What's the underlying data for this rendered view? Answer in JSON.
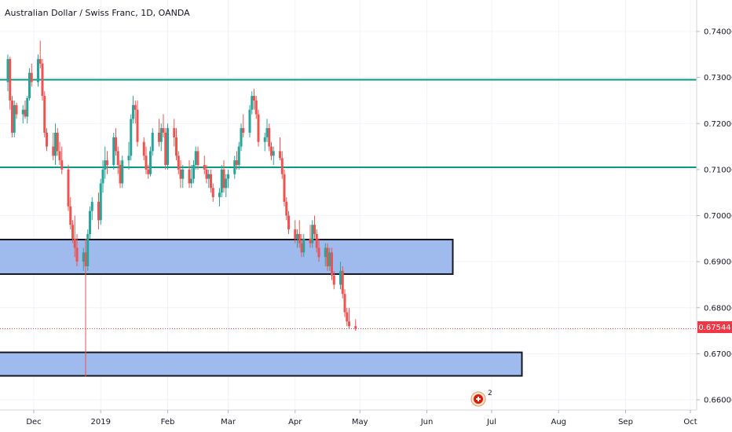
{
  "chart_data": {
    "type": "candlestick",
    "title": "Australian Dollar / Swiss Franc, 1D, OANDA",
    "xlabel": "",
    "ylabel": "",
    "x_ticks": [
      "Dec",
      "2019",
      "Feb",
      "Mar",
      "Apr",
      "May",
      "Jun",
      "Jul",
      "Aug",
      "Sep",
      "Oct"
    ],
    "y_ticks": [
      "0.74000",
      "0.73000",
      "0.72000",
      "0.71000",
      "0.70000",
      "0.69000",
      "0.68000",
      "0.67000",
      "0.66000"
    ],
    "ylim": [
      0.6575,
      0.7465
    ],
    "grid": true,
    "last_price": "0.67544",
    "last_price_value": 0.67544,
    "colors": {
      "up": "#26a69a",
      "down": "#ef5350",
      "line": "#089981",
      "zone_fill": "#9ab6ec",
      "zone_border": "#131722",
      "last": "#f23645"
    },
    "horizontal_lines": [
      0.7295,
      0.7105
    ],
    "zones": [
      {
        "start": "2018-11-15",
        "end": "2019-06-13",
        "top": 0.6948,
        "bottom": 0.6873
      },
      {
        "start": "2018-11-15",
        "end": "2019-07-15",
        "top": 0.6703,
        "bottom": 0.6652
      }
    ],
    "series": [
      {
        "start_date": "2018-11-19",
        "bars": [
          [
            0.729,
            0.735,
            0.727,
            0.734
          ],
          [
            0.734,
            0.7345,
            0.723,
            0.725
          ],
          [
            0.725,
            0.726,
            0.717,
            0.718
          ],
          [
            0.718,
            0.725,
            0.717,
            0.724
          ],
          [
            0.724,
            0.7245,
            0.721,
            0.722
          ],
          [
            0.722,
            0.724,
            0.72,
            0.723
          ],
          [
            0.723,
            0.725,
            0.721,
            0.7215
          ],
          [
            0.7215,
            0.726,
            0.72,
            0.7255
          ],
          [
            0.7255,
            0.732,
            0.725,
            0.731
          ],
          [
            0.731,
            0.733,
            0.728,
            0.729
          ],
          [
            0.729,
            0.735,
            0.728,
            0.734
          ],
          [
            0.734,
            0.738,
            0.732,
            0.733
          ],
          [
            0.733,
            0.734,
            0.725,
            0.726
          ],
          [
            0.726,
            0.727,
            0.717,
            0.718
          ],
          [
            0.718,
            0.719,
            0.714,
            0.715
          ],
          [
            0.715,
            0.718,
            0.712,
            0.713
          ],
          [
            0.713,
            0.72,
            0.711,
            0.718
          ],
          [
            0.718,
            0.719,
            0.713,
            0.714
          ],
          [
            0.714,
            0.716,
            0.711,
            0.712
          ],
          [
            0.712,
            0.715,
            0.709,
            0.71
          ],
          [
            0.71,
            0.711,
            0.701,
            0.702
          ],
          [
            0.702,
            0.704,
            0.697,
            0.698
          ],
          [
            0.698,
            0.699,
            0.694,
            0.695
          ],
          [
            0.695,
            0.7,
            0.691,
            0.693
          ],
          [
            0.693,
            0.696,
            0.689,
            0.69
          ],
          [
            0.69,
            0.693,
            0.688,
            0.692
          ],
          [
            0.692,
            0.695,
            0.665,
            0.689
          ],
          [
            0.689,
            0.697,
            0.688,
            0.696
          ],
          [
            0.696,
            0.702,
            0.695,
            0.701
          ],
          [
            0.701,
            0.704,
            0.699,
            0.703
          ],
          [
            0.703,
            0.705,
            0.697,
            0.699
          ],
          [
            0.699,
            0.708,
            0.698,
            0.707
          ],
          [
            0.707,
            0.712,
            0.705,
            0.71
          ],
          [
            0.71,
            0.715,
            0.708,
            0.712
          ],
          [
            0.712,
            0.714,
            0.709,
            0.711
          ],
          [
            0.711,
            0.718,
            0.71,
            0.717
          ],
          [
            0.717,
            0.719,
            0.713,
            0.714
          ],
          [
            0.714,
            0.715,
            0.709,
            0.711
          ],
          [
            0.711,
            0.712,
            0.706,
            0.707
          ],
          [
            0.707,
            0.713,
            0.706,
            0.712
          ],
          [
            0.712,
            0.716,
            0.71,
            0.713
          ],
          [
            0.713,
            0.722,
            0.712,
            0.721
          ],
          [
            0.721,
            0.726,
            0.72,
            0.724
          ],
          [
            0.724,
            0.725,
            0.72,
            0.723
          ],
          [
            0.723,
            0.725,
            0.715,
            0.716
          ],
          [
            0.716,
            0.717,
            0.712,
            0.713
          ],
          [
            0.713,
            0.715,
            0.709,
            0.71
          ],
          [
            0.71,
            0.711,
            0.708,
            0.709
          ],
          [
            0.709,
            0.715,
            0.7085,
            0.714
          ],
          [
            0.714,
            0.719,
            0.713,
            0.718
          ],
          [
            0.718,
            0.721,
            0.715,
            0.716
          ],
          [
            0.716,
            0.72,
            0.714,
            0.719
          ],
          [
            0.719,
            0.722,
            0.717,
            0.718
          ],
          [
            0.718,
            0.719,
            0.71,
            0.711
          ],
          [
            0.711,
            0.72,
            0.71,
            0.719
          ],
          [
            0.719,
            0.721,
            0.715,
            0.717
          ],
          [
            0.717,
            0.719,
            0.712,
            0.713
          ],
          [
            0.713,
            0.714,
            0.709,
            0.71
          ],
          [
            0.71,
            0.712,
            0.706,
            0.708
          ],
          [
            0.708,
            0.711,
            0.706,
            0.71
          ],
          [
            0.71,
            0.712,
            0.706,
            0.707
          ],
          [
            0.707,
            0.711,
            0.706,
            0.708
          ],
          [
            0.708,
            0.712,
            0.707,
            0.711
          ],
          [
            0.711,
            0.715,
            0.71,
            0.714
          ],
          [
            0.714,
            0.715,
            0.71,
            0.711
          ],
          [
            0.711,
            0.713,
            0.709,
            0.71
          ],
          [
            0.71,
            0.711,
            0.707,
            0.708
          ],
          [
            0.708,
            0.71,
            0.706,
            0.709
          ],
          [
            0.709,
            0.71,
            0.705,
            0.706
          ],
          [
            0.706,
            0.707,
            0.703,
            0.704
          ],
          [
            0.704,
            0.706,
            0.702,
            0.705
          ],
          [
            0.705,
            0.711,
            0.704,
            0.71
          ],
          [
            0.71,
            0.712,
            0.705,
            0.706
          ],
          [
            0.706,
            0.709,
            0.704,
            0.708
          ],
          [
            0.708,
            0.71,
            0.706,
            0.709
          ],
          [
            0.709,
            0.713,
            0.708,
            0.712
          ],
          [
            0.712,
            0.714,
            0.71,
            0.711
          ],
          [
            0.711,
            0.716,
            0.71,
            0.715
          ],
          [
            0.715,
            0.72,
            0.714,
            0.719
          ],
          [
            0.719,
            0.722,
            0.717,
            0.718
          ],
          [
            0.718,
            0.724,
            0.717,
            0.723
          ],
          [
            0.723,
            0.727,
            0.722,
            0.726
          ],
          [
            0.726,
            0.7275,
            0.723,
            0.725
          ],
          [
            0.725,
            0.726,
            0.721,
            0.722
          ],
          [
            0.722,
            0.723,
            0.715,
            0.716
          ],
          [
            0.716,
            0.718,
            0.714,
            0.717
          ],
          [
            0.717,
            0.721,
            0.716,
            0.719
          ],
          [
            0.719,
            0.72,
            0.714,
            0.715
          ],
          [
            0.715,
            0.716,
            0.712,
            0.713
          ],
          [
            0.713,
            0.715,
            0.711,
            0.714
          ],
          [
            0.714,
            0.717,
            0.712,
            0.7125
          ],
          [
            0.7125,
            0.714,
            0.708,
            0.709
          ],
          [
            0.709,
            0.71,
            0.702,
            0.703
          ],
          [
            0.703,
            0.704,
            0.699,
            0.7
          ],
          [
            0.7,
            0.701,
            0.696,
            0.697
          ],
          [
            0.697,
            0.699,
            0.694,
            0.695
          ],
          [
            0.695,
            0.697,
            0.693,
            0.696
          ],
          [
            0.696,
            0.699,
            0.693,
            0.694
          ],
          [
            0.694,
            0.696,
            0.691,
            0.692
          ],
          [
            0.692,
            0.696,
            0.691,
            0.695
          ],
          [
            0.695,
            0.698,
            0.693,
            0.694
          ],
          [
            0.694,
            0.699,
            0.693,
            0.698
          ],
          [
            0.698,
            0.7,
            0.695,
            0.696
          ],
          [
            0.696,
            0.697,
            0.692,
            0.693
          ],
          [
            0.693,
            0.695,
            0.69,
            0.691
          ],
          [
            0.691,
            0.694,
            0.689,
            0.693
          ],
          [
            0.693,
            0.694,
            0.688,
            0.689
          ],
          [
            0.689,
            0.693,
            0.688,
            0.692
          ],
          [
            0.692,
            0.693,
            0.686,
            0.687
          ],
          [
            0.687,
            0.688,
            0.684,
            0.685
          ],
          [
            0.685,
            0.69,
            0.684,
            0.688
          ],
          [
            0.688,
            0.689,
            0.682,
            0.683
          ],
          [
            0.683,
            0.684,
            0.678,
            0.679
          ],
          [
            0.679,
            0.68,
            0.676,
            0.677
          ],
          [
            0.677,
            0.68,
            0.6755,
            0.676
          ],
          [
            0.676,
            0.6775,
            0.675,
            0.67544
          ]
        ]
      }
    ]
  },
  "events": {
    "badge_count": "2",
    "flag_name": "swiss-flag-icon"
  }
}
